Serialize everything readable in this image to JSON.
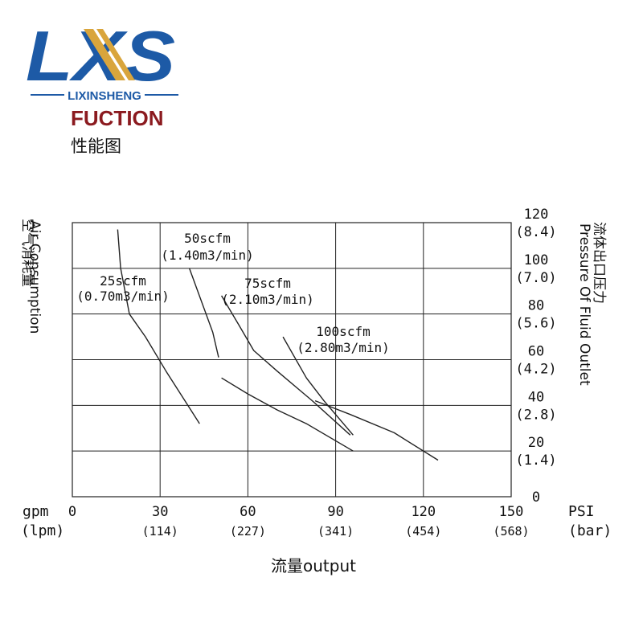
{
  "brand": {
    "wordmark": "LXS",
    "sub": "LIXINSHENG",
    "tag": "FUCTION",
    "cn": "性能图",
    "colors": {
      "blue": "#1d5aa6",
      "gold": "#d9a53c",
      "red": "#8b1a1f"
    }
  },
  "chart_data": {
    "type": "line",
    "xlabel": "流量output",
    "x_unit_top": "gpm",
    "x_unit_bottom": "(lpm)",
    "x_ticks": [
      {
        "value": 0,
        "label": "0",
        "sub": ""
      },
      {
        "value": 30,
        "label": "30",
        "sub": "(114)"
      },
      {
        "value": 60,
        "label": "60",
        "sub": "(227)"
      },
      {
        "value": 90,
        "label": "90",
        "sub": "(341)"
      },
      {
        "value": 120,
        "label": "120",
        "sub": "(454)"
      },
      {
        "value": 150,
        "label": "150",
        "sub": "(568)"
      }
    ],
    "xlim": [
      0,
      150
    ],
    "ylabel_left_cn": "空气消耗量",
    "ylabel_left_en": "Air Consumption",
    "ylabel_right_cn": "流体出口压力",
    "ylabel_right_en": "Pressure Of Fluid Outlet",
    "y_unit_top": "PSI",
    "y_unit_bottom": "(bar)",
    "y_ticks": [
      {
        "value": 0,
        "label": "0",
        "sub": ""
      },
      {
        "value": 20,
        "label": "20",
        "sub": "(1.4)"
      },
      {
        "value": 40,
        "label": "40",
        "sub": "(2.8)"
      },
      {
        "value": 60,
        "label": "60",
        "sub": "(4.2)"
      },
      {
        "value": 80,
        "label": "80",
        "sub": "(5.6)"
      },
      {
        "value": 100,
        "label": "100",
        "sub": "(7.0)"
      },
      {
        "value": 120,
        "label": "120",
        "sub": "(8.4)"
      }
    ],
    "ylim": [
      0,
      120
    ],
    "grid": true,
    "performance_curves": [
      {
        "x": [
          15.5,
          16.5,
          19.5,
          25,
          32,
          43.5
        ],
        "y": [
          117,
          100,
          80,
          70,
          55,
          32
        ]
      },
      {
        "x": [
          40,
          48,
          50
        ],
        "y": [
          100,
          72,
          61
        ]
      },
      {
        "x": [
          51,
          57,
          62,
          70,
          82,
          95
        ],
        "y": [
          88,
          75,
          64,
          55,
          42,
          27
        ]
      },
      {
        "x": [
          51,
          60,
          70,
          80,
          96
        ],
        "y": [
          52,
          45,
          38,
          32,
          20
        ]
      },
      {
        "x": [
          72,
          80,
          86,
          96
        ],
        "y": [
          70,
          52,
          42,
          27
        ]
      },
      {
        "x": [
          83,
          95,
          110,
          125
        ],
        "y": [
          42,
          36,
          28,
          16
        ]
      }
    ],
    "air_curves": [
      {
        "label": "25scfm",
        "sub": "(0.70m3/min)"
      },
      {
        "label": "50scfm",
        "sub": "(1.40m3/min)"
      },
      {
        "label": "75scfm",
        "sub": "(2.10m3/min)"
      },
      {
        "label": "100scfm",
        "sub": "(2.80m3/min)"
      }
    ]
  }
}
